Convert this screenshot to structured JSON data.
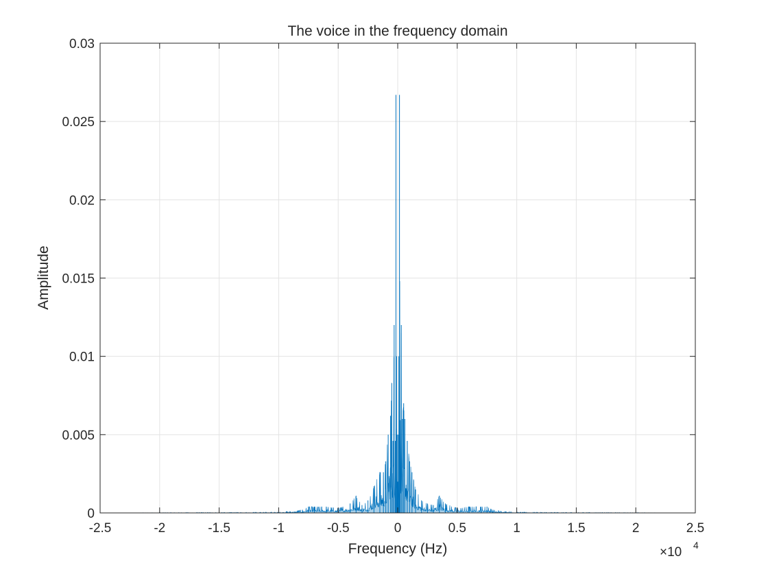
{
  "chart_data": {
    "type": "line",
    "title": "The voice in the frequency domain",
    "xlabel": "Frequency (Hz)",
    "ylabel": "Amplitude",
    "x_exponent_label": "×10",
    "x_exponent_power": "4",
    "xlim": [
      -25000,
      25000
    ],
    "ylim": [
      0,
      0.03
    ],
    "grid": true,
    "x_ticks": [
      -25000,
      -20000,
      -15000,
      -10000,
      -5000,
      0,
      5000,
      10000,
      15000,
      20000,
      25000
    ],
    "x_tick_labels": [
      "-2.5",
      "-2",
      "-1.5",
      "-1",
      "-0.5",
      "0",
      "0.5",
      "1",
      "1.5",
      "2",
      "2.5"
    ],
    "y_ticks": [
      0,
      0.005,
      0.01,
      0.015,
      0.02,
      0.025,
      0.03
    ],
    "y_tick_labels": [
      "0",
      "0.005",
      "0.01",
      "0.015",
      "0.02",
      "0.025",
      "0.03"
    ],
    "series": [
      {
        "color": "#0072bd",
        "x": [
          -22050,
          -20000,
          -15000,
          -10000,
          -9000,
          -8000,
          -7500,
          -7000,
          -6000,
          -5000,
          -4000,
          -3500,
          -3000,
          -2500,
          -2000,
          -1500,
          -1200,
          -1000,
          -800,
          -600,
          -500,
          -400,
          -300,
          -200,
          -150,
          -100,
          -50,
          0,
          50,
          100,
          150,
          200,
          300,
          400,
          500,
          600,
          800,
          1000,
          1200,
          1500,
          2000,
          2500,
          3000,
          3500,
          4000,
          5000,
          6000,
          7000,
          7500,
          8000,
          9000,
          10000,
          15000,
          20000,
          22050
        ],
        "y": [
          1e-05,
          2e-05,
          3e-05,
          5e-05,
          0.0001,
          0.0002,
          0.0004,
          0.0004,
          0.0004,
          0.0003,
          0.0006,
          0.0011,
          0.0005,
          0.0008,
          0.0017,
          0.0026,
          0.0026,
          0.0033,
          0.005,
          0.0062,
          0.0083,
          0.0046,
          0.012,
          0.0046,
          0.0267,
          0.01,
          0.005,
          0.002,
          0.005,
          0.01,
          0.0267,
          0.0046,
          0.012,
          0.006,
          0.007,
          0.006,
          0.0046,
          0.0033,
          0.0026,
          0.0015,
          0.0008,
          0.0006,
          0.0005,
          0.0011,
          0.0006,
          0.0003,
          0.0004,
          0.0004,
          0.0004,
          0.0002,
          0.0001,
          5e-05,
          3e-05,
          2e-05,
          1e-05
        ]
      }
    ]
  }
}
